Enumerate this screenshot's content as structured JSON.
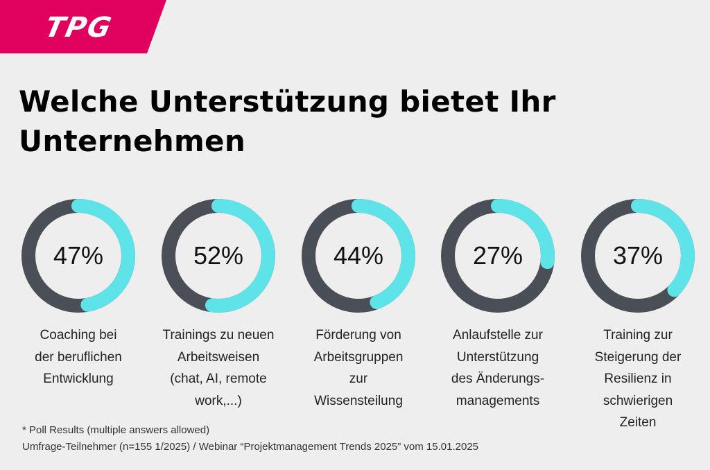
{
  "logo": {
    "text": "TPG",
    "color": "#e0005e"
  },
  "title": "Welche Unterstützung bietet Ihr Unternehmen",
  "chart_data": {
    "type": "donut",
    "colors": {
      "filled": "#5ee3e8",
      "remaining": "#4a4f57"
    },
    "items": [
      {
        "value": 47,
        "display": "47%",
        "label": "Coaching bei\nder beruflichen\nEntwicklung"
      },
      {
        "value": 52,
        "display": "52%",
        "label": "Trainings zu neuen\nArbeitsweisen\n(chat, AI, remote\nwork,...)"
      },
      {
        "value": 44,
        "display": "44%",
        "label": "Förderung von\nArbeitsgruppen\nzur\nWissensteilung"
      },
      {
        "value": 27,
        "display": "27%",
        "label": "Anlaufstelle zur\nUnterstützung\ndes Änderungs-\nmanagements"
      },
      {
        "value": 37,
        "display": "37%",
        "label": "Training zur\nSteigerung der\nResilienz in\nschwierigen\nZeiten"
      }
    ]
  },
  "footnote": "* Poll Results (multiple answers allowed)",
  "source": "Umfrage-Teilnehmer (n=155 1/2025) / Webinar “Projektmanagement Trends 2025” vom 15.01.2025"
}
